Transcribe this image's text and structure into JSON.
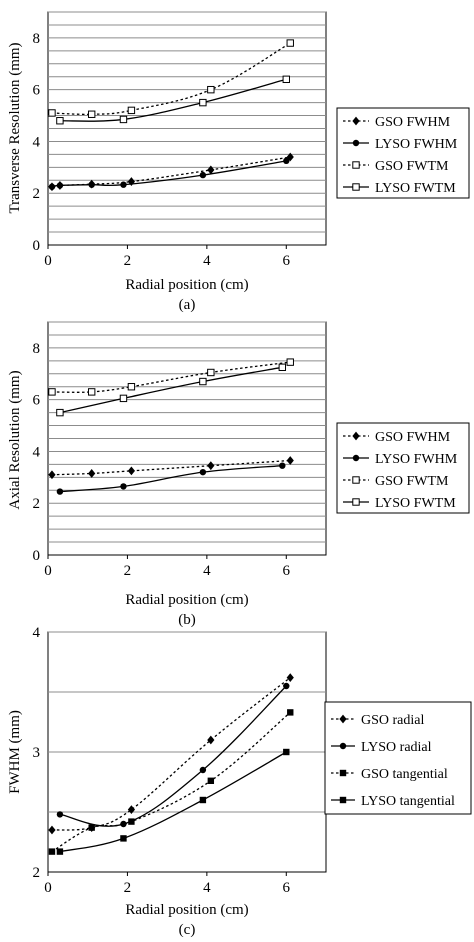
{
  "chart_data": [
    {
      "type": "line",
      "panel_label": "(a)",
      "xlabel": "Radial position (cm)",
      "ylabel": "Transverse Resolution (mm)",
      "xlim": [
        0,
        7
      ],
      "ylim": [
        0,
        9
      ],
      "xticks": [
        0,
        2,
        4,
        6
      ],
      "yticks": [
        0,
        2,
        4,
        6,
        8
      ],
      "grid_y": [
        0.5,
        1,
        1.5,
        2,
        2.5,
        3,
        3.5,
        4,
        4.5,
        5,
        5.5,
        6,
        6.5,
        7,
        7.5,
        8,
        8.5,
        9
      ],
      "grid": "horizontal",
      "legend_position": "right",
      "series": [
        {
          "name": "GSO FWHM",
          "marker": "filled-diamond",
          "line": "dotted",
          "x": [
            0.1,
            0.3,
            1.1,
            2.1,
            4.1,
            6.1
          ],
          "y": [
            2.25,
            2.3,
            2.35,
            2.45,
            2.9,
            3.4
          ]
        },
        {
          "name": "LYSO FWHM",
          "marker": "filled-circle",
          "line": "solid",
          "x": [
            0.1,
            0.3,
            1.1,
            1.9,
            3.9,
            6.0
          ],
          "y": [
            2.25,
            2.3,
            2.33,
            2.33,
            2.7,
            3.25
          ]
        },
        {
          "name": "GSO FWTM",
          "marker": "open-square",
          "line": "dotted",
          "x": [
            0.1,
            1.1,
            2.1,
            4.1,
            6.1
          ],
          "y": [
            5.1,
            5.05,
            5.2,
            6.0,
            7.8
          ]
        },
        {
          "name": "LYSO FWTM",
          "marker": "open-square",
          "line": "solid",
          "x": [
            0.3,
            1.9,
            3.9,
            6.0
          ],
          "y": [
            4.8,
            4.85,
            5.5,
            6.4
          ]
        }
      ]
    },
    {
      "type": "line",
      "panel_label": "(b)",
      "xlabel": "Radial position (cm)",
      "ylabel": "Axial Resolution (mm)",
      "xlim": [
        0,
        7
      ],
      "ylim": [
        0,
        9
      ],
      "xticks": [
        0,
        2,
        4,
        6
      ],
      "yticks": [
        0,
        2,
        4,
        6,
        8
      ],
      "grid_y": [
        0.5,
        1,
        1.5,
        2,
        2.5,
        3,
        3.5,
        4,
        4.5,
        5,
        5.5,
        6,
        6.5,
        7,
        7.5,
        8,
        8.5,
        9
      ],
      "grid": "horizontal",
      "legend_position": "right",
      "series": [
        {
          "name": "GSO FWHM",
          "marker": "filled-diamond",
          "line": "dotted",
          "x": [
            0.1,
            1.1,
            2.1,
            4.1,
            6.1
          ],
          "y": [
            3.1,
            3.15,
            3.25,
            3.45,
            3.65
          ]
        },
        {
          "name": "LYSO FWHM",
          "marker": "filled-circle",
          "line": "solid",
          "x": [
            0.3,
            1.9,
            3.9,
            5.9
          ],
          "y": [
            2.45,
            2.65,
            3.2,
            3.45
          ]
        },
        {
          "name": "GSO FWTM",
          "marker": "open-square",
          "line": "dotted",
          "x": [
            0.1,
            1.1,
            2.1,
            4.1,
            6.1
          ],
          "y": [
            6.3,
            6.3,
            6.5,
            7.05,
            7.45
          ]
        },
        {
          "name": "LYSO FWTM",
          "marker": "open-square",
          "line": "solid",
          "x": [
            0.3,
            1.9,
            3.9,
            5.9
          ],
          "y": [
            5.5,
            6.05,
            6.7,
            7.25
          ]
        }
      ]
    },
    {
      "type": "line",
      "panel_label": "(c)",
      "xlabel": "Radial position (cm)",
      "ylabel": "FWHM (mm)",
      "xlim": [
        0,
        7
      ],
      "ylim": [
        2,
        4
      ],
      "xticks": [
        0,
        2,
        4,
        6
      ],
      "yticks": [
        2,
        3,
        4
      ],
      "grid_y": [
        2.5,
        3,
        3.5,
        4
      ],
      "grid": "horizontal",
      "legend_position": "right",
      "series": [
        {
          "name": "GSO radial",
          "marker": "filled-diamond",
          "line": "dotted",
          "x": [
            0.1,
            1.1,
            2.1,
            4.1,
            6.1
          ],
          "y": [
            2.35,
            2.37,
            2.52,
            3.1,
            3.62
          ]
        },
        {
          "name": "LYSO radial",
          "marker": "filled-circle",
          "line": "solid",
          "x": [
            0.3,
            1.9,
            3.9,
            6.0
          ],
          "y": [
            2.48,
            2.4,
            2.85,
            3.55
          ]
        },
        {
          "name": "GSO tangential",
          "marker": "filled-square",
          "line": "dotted",
          "x": [
            0.1,
            1.1,
            2.1,
            4.1,
            6.1
          ],
          "y": [
            2.17,
            2.37,
            2.42,
            2.76,
            3.33
          ]
        },
        {
          "name": "LYSO tangential",
          "marker": "filled-square",
          "line": "solid",
          "x": [
            0.3,
            1.9,
            3.9,
            6.0
          ],
          "y": [
            2.17,
            2.28,
            2.6,
            3.0
          ]
        }
      ]
    }
  ]
}
